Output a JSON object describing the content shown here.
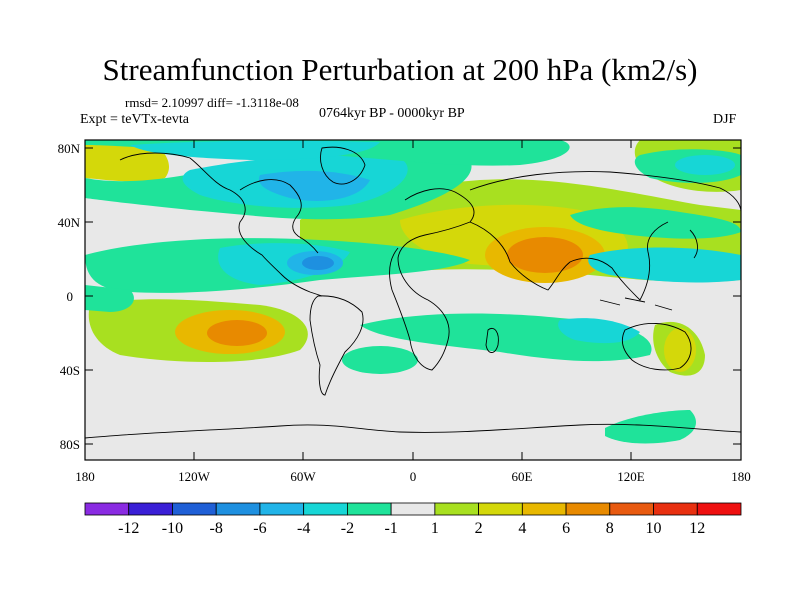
{
  "title": "Streamfunction Perturbation at 200 hPa (km2/s)",
  "stats": "rmsd= 2.10997  diff= -1.3118e-08",
  "experiment": "Expt = teVTx-tevta",
  "period": "0764kyr BP - 0000kyr BP",
  "season": "DJF",
  "lat_ticks": [
    "80N",
    "40N",
    "0",
    "40S",
    "80S"
  ],
  "lon_ticks": [
    "180",
    "120W",
    "60W",
    "0",
    "60E",
    "120E",
    "180"
  ],
  "colorbar": {
    "labels": [
      "-12",
      "-10",
      "-8",
      "-6",
      "-4",
      "-2",
      "-1",
      "1",
      "2",
      "4",
      "6",
      "8",
      "10",
      "12"
    ],
    "colors": [
      "#8a2be2",
      "#3a1fd6",
      "#1f5fd6",
      "#1e90e0",
      "#21b4e8",
      "#17d6d6",
      "#1fe39a",
      "#e8e8e8",
      "#a8e020",
      "#d4d80a",
      "#e8b800",
      "#e88a00",
      "#e85a10",
      "#e83010",
      "#ee1010"
    ]
  },
  "chart_data": {
    "type": "heatmap",
    "title": "Streamfunction Perturbation at 200 hPa (km2/s)",
    "projection": "cylindrical equidistant",
    "xlim": [
      -180,
      180
    ],
    "ylim": [
      -90,
      90
    ],
    "x_ticks": [
      "180",
      "120W",
      "60W",
      "0",
      "60E",
      "120E",
      "180"
    ],
    "y_ticks": [
      "80N",
      "40N",
      "0",
      "40S",
      "80S"
    ],
    "levels": [
      -12,
      -10,
      -8,
      -6,
      -4,
      -2,
      -1,
      1,
      2,
      4,
      6,
      8,
      10,
      12
    ],
    "features": [
      {
        "lon": 75,
        "lat": 25,
        "value": 6
      },
      {
        "lon": -90,
        "lat": -18,
        "value": 6
      },
      {
        "lon": -85,
        "lat": 18,
        "value": -6
      },
      {
        "lon": -100,
        "lat": 60,
        "value": -4
      },
      {
        "lon": -145,
        "lat": 10,
        "value": -4
      },
      {
        "lon": 165,
        "lat": 75,
        "value": -4
      },
      {
        "lon": 95,
        "lat": -20,
        "value": -4
      },
      {
        "lon": 140,
        "lat": -25,
        "value": 4
      },
      {
        "lon": -165,
        "lat": 78,
        "value": 4
      },
      {
        "lon": 0,
        "lat": 80,
        "value": 2
      },
      {
        "lon": 150,
        "lat": -78,
        "value": -1
      }
    ]
  }
}
